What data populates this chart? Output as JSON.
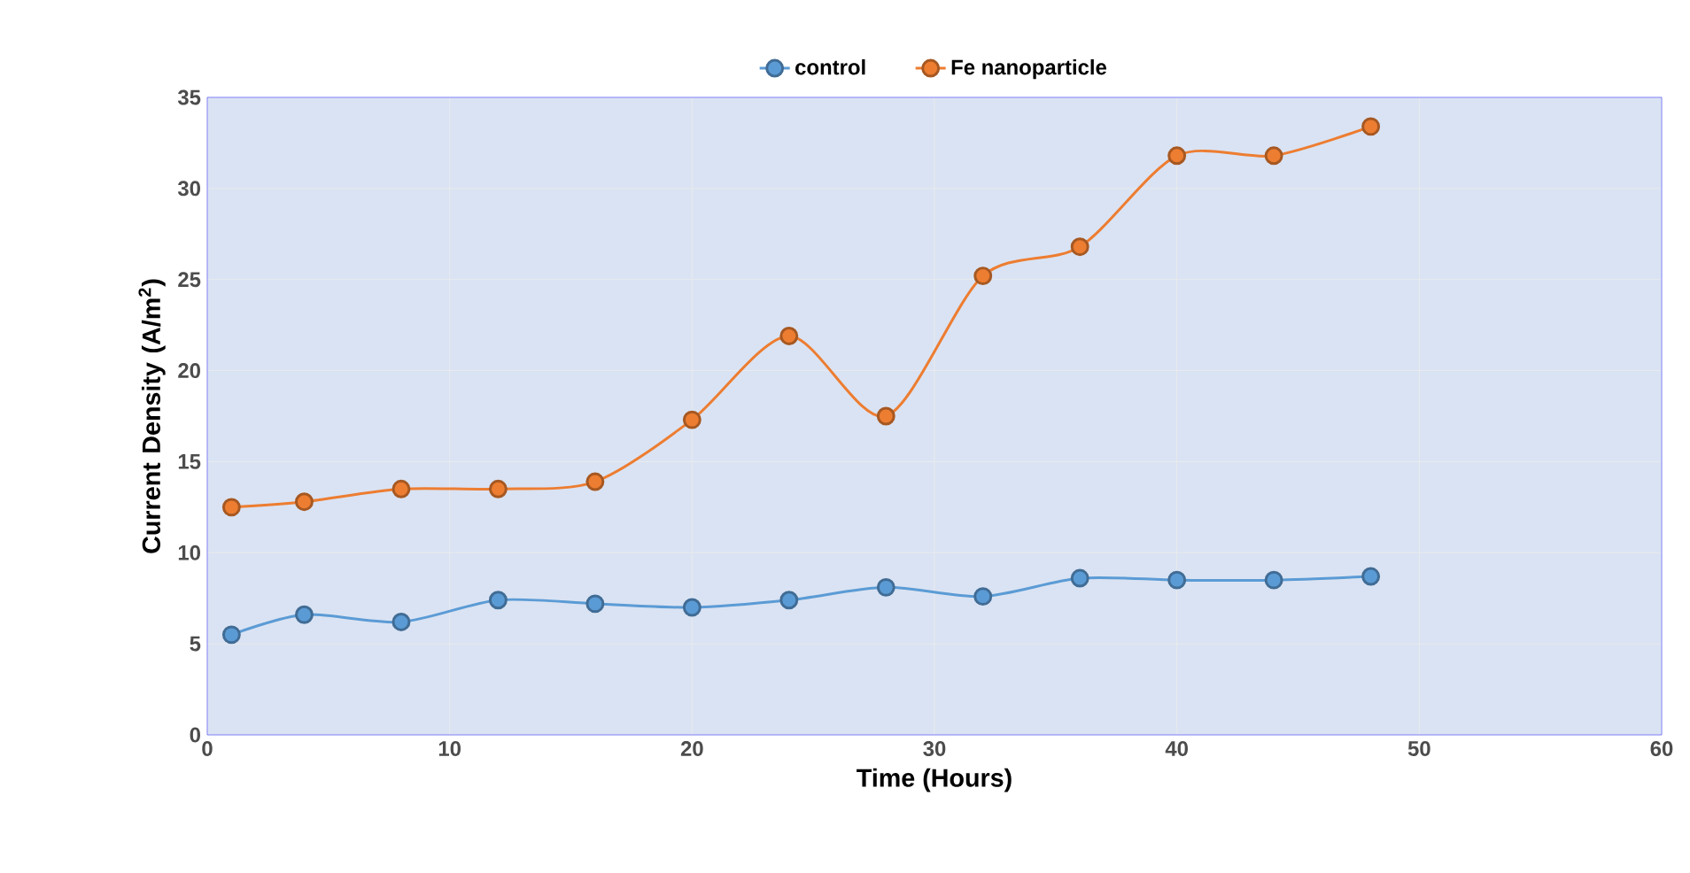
{
  "chart_data": {
    "type": "line",
    "xlabel": "Time (Hours)",
    "ylabel": "Current Density (A/m$^{2}$)",
    "x": [
      1,
      4,
      8,
      12,
      16,
      20,
      24,
      28,
      32,
      36,
      40,
      44,
      48
    ],
    "series": [
      {
        "name": "control",
        "color": "#5b9bd5",
        "values": [
          5.5,
          6.6,
          6.2,
          7.4,
          7.2,
          7.0,
          7.4,
          8.1,
          7.6,
          8.6,
          8.5,
          8.5,
          8.7
        ]
      },
      {
        "name": "Fe nanoparticle",
        "color": "#ed7d31",
        "values": [
          12.5,
          12.8,
          13.5,
          13.5,
          13.9,
          17.3,
          21.9,
          17.5,
          25.2,
          26.8,
          31.8,
          31.8,
          33.4
        ]
      }
    ],
    "xlim": [
      0,
      60
    ],
    "xticks": [
      0,
      10,
      20,
      30,
      40,
      50,
      60
    ],
    "ylim": [
      0,
      35
    ],
    "yticks": [
      0,
      5,
      10,
      15,
      20,
      25,
      30,
      35
    ],
    "grid": true,
    "legend": "top",
    "marker": "circle",
    "line_style": "solid"
  }
}
